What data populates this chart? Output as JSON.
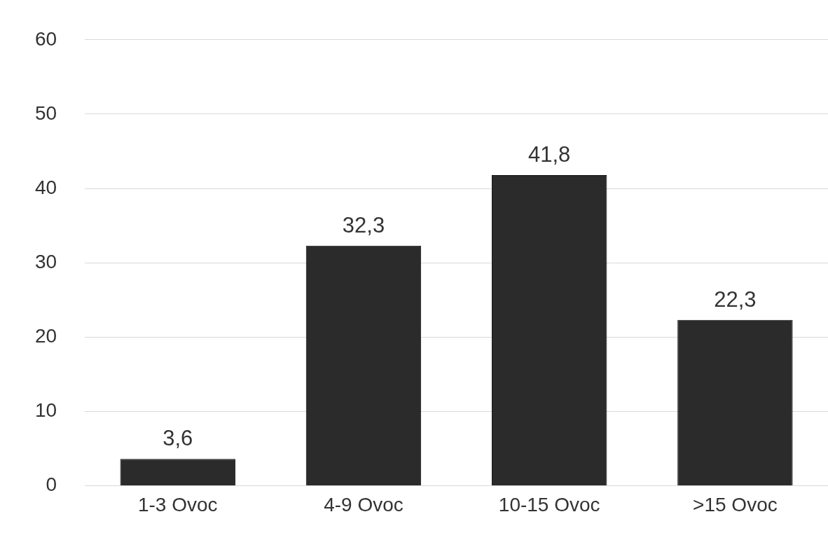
{
  "chart_data": {
    "type": "bar",
    "categories": [
      "1-3 Ovoc",
      "4-9 Ovoc",
      "10-15 Ovoc",
      ">15 Ovoc"
    ],
    "values": [
      3.6,
      32.3,
      41.8,
      22.3
    ],
    "color": "#2b2b2b",
    "ylim": [
      0,
      60
    ],
    "yticks": [
      0,
      10,
      20,
      30,
      40,
      50,
      60
    ],
    "grid": "y",
    "data_labels": true,
    "value_labels": [
      "3,6",
      "32,3",
      "41,8",
      "22,3"
    ]
  }
}
